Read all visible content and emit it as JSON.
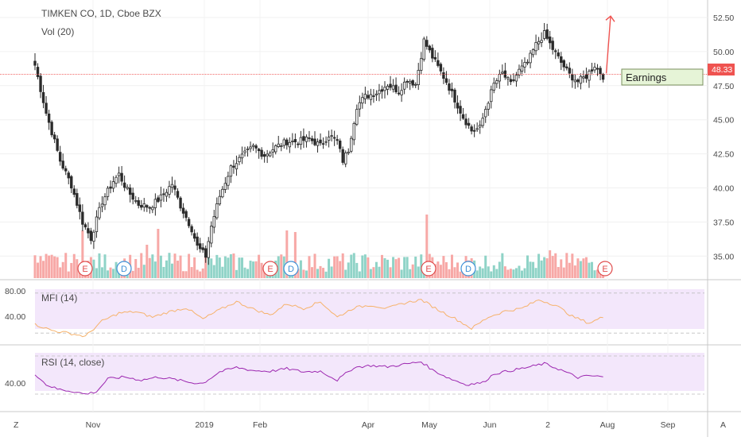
{
  "header": {
    "title": "TIMKEN CO, 1D, Cboe BZX",
    "volume_label": "Vol (20)"
  },
  "colors": {
    "up": "#26a69a",
    "down": "#ef5350",
    "candle_body": "#2b2b2b",
    "vol_up": "#8fd3c7",
    "vol_down": "#f7a8a6",
    "osc": "#9c27b0",
    "mfi_line": "#f6b26b",
    "band": "#f3e7fb",
    "price_line": "#ef5350"
  },
  "price_axis": {
    "ticks": [
      "52.50",
      "50.00",
      "47.50",
      "45.00",
      "42.50",
      "40.00",
      "37.50",
      "35.00"
    ],
    "last_price": "48.33"
  },
  "time_axis": {
    "labels": [
      "Nov",
      "2019",
      "Feb",
      "Apr",
      "May",
      "Jun",
      "2",
      "Aug",
      "Sep"
    ]
  },
  "events": [
    {
      "type": "E"
    },
    {
      "type": "D"
    },
    {
      "type": "E"
    },
    {
      "type": "D"
    },
    {
      "type": "E"
    },
    {
      "type": "D"
    },
    {
      "type": "E"
    }
  ],
  "annotation": {
    "label": "Earnings"
  },
  "mfi": {
    "label": "MFI (14)",
    "ticks": [
      "80.00",
      "40.00"
    ]
  },
  "rsi": {
    "label": "RSI (14, close)",
    "ticks": [
      "40.00"
    ]
  },
  "corner_buttons": {
    "left": "Z",
    "right": "A"
  },
  "chart_data": {
    "type": "candlestick",
    "title": "TIMKEN CO, 1D, Cboe BZX",
    "y_range": [
      33.5,
      53.2
    ],
    "last_price": 48.33,
    "close_path": [
      [
        0,
        49.0
      ],
      [
        4,
        45.5
      ],
      [
        9,
        42.0
      ],
      [
        13,
        40.2
      ],
      [
        17,
        37.5
      ],
      [
        20,
        36.3
      ],
      [
        24,
        39.0
      ],
      [
        28,
        40.5
      ],
      [
        30,
        41.0
      ],
      [
        33,
        39.8
      ],
      [
        37,
        38.8
      ],
      [
        41,
        38.6
      ],
      [
        45,
        39.3
      ],
      [
        49,
        40.3
      ],
      [
        52,
        38.7
      ],
      [
        56,
        37.0
      ],
      [
        58,
        35.7
      ],
      [
        61,
        35.0
      ],
      [
        63,
        37.2
      ],
      [
        66,
        39.4
      ],
      [
        70,
        41.5
      ],
      [
        74,
        42.3
      ],
      [
        78,
        43.0
      ],
      [
        82,
        42.4
      ],
      [
        86,
        43.0
      ],
      [
        90,
        43.4
      ],
      [
        94,
        43.4
      ],
      [
        98,
        43.6
      ],
      [
        102,
        43.1
      ],
      [
        105,
        43.9
      ],
      [
        108,
        43.4
      ],
      [
        110,
        42.0
      ],
      [
        112,
        42.8
      ],
      [
        115,
        46.0
      ],
      [
        118,
        46.7
      ],
      [
        122,
        47.0
      ],
      [
        126,
        47.6
      ],
      [
        130,
        47.1
      ],
      [
        133,
        48.0
      ],
      [
        136,
        47.6
      ],
      [
        139,
        50.8
      ],
      [
        142,
        49.6
      ],
      [
        145,
        48.5
      ],
      [
        147,
        47.8
      ],
      [
        150,
        46.5
      ],
      [
        153,
        45.2
      ],
      [
        156,
        44.2
      ],
      [
        159,
        44.4
      ],
      [
        161,
        45.8
      ],
      [
        164,
        47.6
      ],
      [
        167,
        48.4
      ],
      [
        170,
        47.6
      ],
      [
        173,
        48.6
      ],
      [
        176,
        49.2
      ],
      [
        179,
        50.5
      ],
      [
        182,
        51.3
      ],
      [
        185,
        50.2
      ],
      [
        188,
        49.2
      ],
      [
        191,
        48.3
      ],
      [
        194,
        47.8
      ],
      [
        197,
        48.2
      ],
      [
        200,
        49.0
      ],
      [
        203,
        48.2
      ]
    ],
    "volume": {
      "label": "Vol (20)"
    },
    "indicators": [
      {
        "name": "MFI (14)",
        "ticks": [
          80,
          40
        ],
        "path": [
          [
            0,
            33
          ],
          [
            6,
            24
          ],
          [
            12,
            20
          ],
          [
            18,
            15
          ],
          [
            24,
            38
          ],
          [
            30,
            50
          ],
          [
            36,
            52
          ],
          [
            42,
            44
          ],
          [
            48,
            52
          ],
          [
            54,
            58
          ],
          [
            60,
            41
          ],
          [
            66,
            55
          ],
          [
            72,
            67
          ],
          [
            78,
            56
          ],
          [
            84,
            47
          ],
          [
            90,
            64
          ],
          [
            96,
            57
          ],
          [
            102,
            67
          ],
          [
            108,
            44
          ],
          [
            114,
            58
          ],
          [
            120,
            62
          ],
          [
            126,
            57
          ],
          [
            132,
            65
          ],
          [
            138,
            70
          ],
          [
            144,
            55
          ],
          [
            150,
            42
          ],
          [
            156,
            27
          ],
          [
            162,
            44
          ],
          [
            168,
            53
          ],
          [
            174,
            57
          ],
          [
            180,
            70
          ],
          [
            186,
            62
          ],
          [
            192,
            45
          ],
          [
            198,
            35
          ],
          [
            203,
            44
          ]
        ]
      },
      {
        "name": "RSI (14, close)",
        "ticks": [
          40
        ],
        "path": [
          [
            0,
            52
          ],
          [
            4,
            35
          ],
          [
            8,
            28
          ],
          [
            14,
            24
          ],
          [
            18,
            20
          ],
          [
            22,
            24
          ],
          [
            26,
            44
          ],
          [
            32,
            47
          ],
          [
            38,
            42
          ],
          [
            44,
            47
          ],
          [
            50,
            43
          ],
          [
            56,
            38
          ],
          [
            60,
            37
          ],
          [
            66,
            55
          ],
          [
            72,
            62
          ],
          [
            78,
            57
          ],
          [
            84,
            56
          ],
          [
            90,
            60
          ],
          [
            96,
            55
          ],
          [
            102,
            56
          ],
          [
            108,
            42
          ],
          [
            114,
            62
          ],
          [
            120,
            65
          ],
          [
            126,
            63
          ],
          [
            132,
            67
          ],
          [
            138,
            71
          ],
          [
            142,
            58
          ],
          [
            148,
            45
          ],
          [
            154,
            35
          ],
          [
            160,
            38
          ],
          [
            164,
            52
          ],
          [
            170,
            57
          ],
          [
            176,
            62
          ],
          [
            182,
            68
          ],
          [
            188,
            58
          ],
          [
            194,
            46
          ],
          [
            198,
            49
          ],
          [
            203,
            47
          ]
        ]
      }
    ]
  }
}
